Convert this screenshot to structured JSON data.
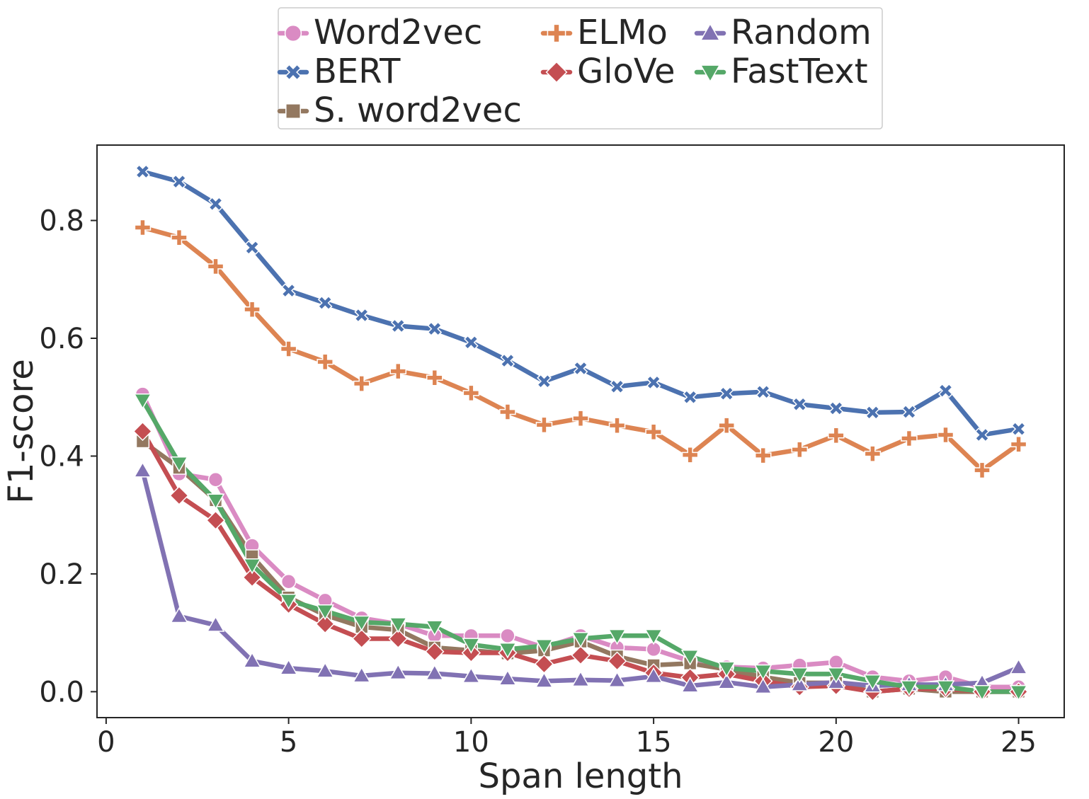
{
  "chart_data": {
    "type": "line",
    "title": "",
    "xlabel": "Span length",
    "ylabel": "F1-score",
    "xlim": [
      -0.25,
      26.25
    ],
    "ylim": [
      -0.044,
      0.928
    ],
    "xticks": [
      0,
      5,
      10,
      15,
      20,
      25
    ],
    "xtick_labels": [
      "0",
      "5",
      "10",
      "15",
      "20",
      "25"
    ],
    "yticks": [
      0.0,
      0.2,
      0.4,
      0.6,
      0.8
    ],
    "ytick_labels": [
      "0.0",
      "0.2",
      "0.4",
      "0.6",
      "0.8"
    ],
    "grid": false,
    "legend_position": "top-center",
    "x": [
      1,
      2,
      3,
      4,
      5,
      6,
      7,
      8,
      9,
      10,
      11,
      12,
      13,
      14,
      15,
      16,
      17,
      18,
      19,
      20,
      21,
      22,
      23,
      24,
      25
    ],
    "series": [
      {
        "name": "Word2vec",
        "color": "#da8bc3",
        "marker": "circle",
        "values": [
          0.505,
          0.37,
          0.36,
          0.248,
          0.187,
          0.155,
          0.125,
          0.115,
          0.095,
          0.095,
          0.095,
          0.075,
          0.095,
          0.075,
          0.072,
          0.052,
          0.042,
          0.04,
          0.045,
          0.05,
          0.025,
          0.018,
          0.025,
          0.008,
          0.008
        ]
      },
      {
        "name": "BERT",
        "color": "#4c72b0",
        "marker": "x",
        "values": [
          0.883,
          0.866,
          0.828,
          0.754,
          0.681,
          0.66,
          0.639,
          0.621,
          0.616,
          0.593,
          0.562,
          0.527,
          0.549,
          0.518,
          0.525,
          0.5,
          0.506,
          0.509,
          0.488,
          0.481,
          0.474,
          0.475,
          0.511,
          0.436,
          0.446
        ]
      },
      {
        "name": "S. word2vec",
        "color": "#937860",
        "marker": "square",
        "values": [
          0.425,
          0.38,
          0.325,
          0.23,
          0.16,
          0.13,
          0.11,
          0.105,
          0.075,
          0.07,
          0.065,
          0.07,
          0.085,
          0.06,
          0.045,
          0.048,
          0.038,
          0.025,
          0.015,
          0.015,
          0.0,
          0.005,
          0.0,
          0.0,
          0.0
        ]
      },
      {
        "name": "ELMo",
        "color": "#dd8452",
        "marker": "plus",
        "values": [
          0.788,
          0.771,
          0.722,
          0.649,
          0.582,
          0.56,
          0.523,
          0.544,
          0.533,
          0.507,
          0.475,
          0.453,
          0.464,
          0.452,
          0.441,
          0.402,
          0.452,
          0.401,
          0.411,
          0.435,
          0.404,
          0.43,
          0.436,
          0.376,
          0.42
        ]
      },
      {
        "name": "GloVe",
        "color": "#c44e52",
        "marker": "diamond",
        "values": [
          0.442,
          0.333,
          0.291,
          0.194,
          0.148,
          0.115,
          0.09,
          0.09,
          0.068,
          0.066,
          0.066,
          0.047,
          0.062,
          0.052,
          0.032,
          0.024,
          0.03,
          0.018,
          0.008,
          0.01,
          0.0,
          0.005,
          0.005,
          0.0,
          0.0
        ]
      },
      {
        "name": "Random",
        "color": "#8172b3",
        "marker": "triangle-up",
        "values": [
          0.375,
          0.128,
          0.113,
          0.052,
          0.04,
          0.035,
          0.027,
          0.032,
          0.031,
          0.026,
          0.022,
          0.018,
          0.02,
          0.019,
          0.026,
          0.01,
          0.016,
          0.008,
          0.012,
          0.016,
          0.01,
          0.012,
          0.012,
          0.015,
          0.041
        ]
      },
      {
        "name": "FastText",
        "color": "#55a868",
        "marker": "triangle-down",
        "values": [
          0.495,
          0.388,
          0.325,
          0.215,
          0.155,
          0.137,
          0.118,
          0.115,
          0.11,
          0.08,
          0.072,
          0.078,
          0.09,
          0.095,
          0.095,
          0.06,
          0.04,
          0.035,
          0.03,
          0.03,
          0.018,
          0.008,
          0.008,
          0.0,
          0.0
        ]
      }
    ]
  }
}
